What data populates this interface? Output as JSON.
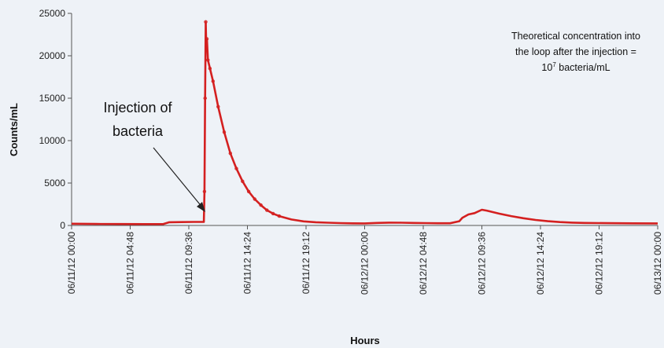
{
  "chart_data": {
    "type": "line",
    "title": "",
    "xlabel": "Hours",
    "ylabel": "Counts/mL",
    "ylim": [
      0,
      25000
    ],
    "yticks": [
      0,
      5000,
      10000,
      15000,
      20000,
      25000
    ],
    "ytick_labels": [
      "0",
      "5000",
      "10000",
      "15000",
      "20000",
      "25000"
    ],
    "xlim": [
      "2012-06-11T00:00",
      "2012-06-13T00:00"
    ],
    "xticks": [
      "2012-06-11T00:00",
      "2012-06-11T04:48",
      "2012-06-11T09:36",
      "2012-06-11T14:24",
      "2012-06-11T19:12",
      "2012-06-12T00:00",
      "2012-06-12T04:48",
      "2012-06-12T09:36",
      "2012-06-12T14:24",
      "2012-06-12T19:12",
      "2012-06-13T00:00"
    ],
    "xtick_labels": [
      "06/11/12  00:00",
      "06/11/12  04:48",
      "06/11/12  09:36",
      "06/11/12  14:24",
      "06/11/12  19:12",
      "06/12/12  00:00",
      "06/12/12  04:48",
      "06/12/12  09:36",
      "06/12/12  14:24",
      "06/12/12  19:12",
      "06/13/12  00:00"
    ],
    "grid": false,
    "series": [
      {
        "name": "",
        "color": "#d42020",
        "points": [
          [
            "2012-06-11T00:00",
            200
          ],
          [
            "2012-06-11T02:00",
            180
          ],
          [
            "2012-06-11T04:00",
            170
          ],
          [
            "2012-06-11T06:00",
            160
          ],
          [
            "2012-06-11T07:30",
            160
          ],
          [
            "2012-06-11T08:00",
            380
          ],
          [
            "2012-06-11T09:00",
            400
          ],
          [
            "2012-06-11T10:00",
            420
          ],
          [
            "2012-06-11T10:50",
            420
          ],
          [
            "2012-06-11T10:53",
            4000
          ],
          [
            "2012-06-11T10:56",
            15000
          ],
          [
            "2012-06-11T10:59",
            24000
          ],
          [
            "2012-06-11T11:02",
            21000
          ],
          [
            "2012-06-11T11:05",
            22000
          ],
          [
            "2012-06-11T11:10",
            19500
          ],
          [
            "2012-06-11T11:20",
            18500
          ],
          [
            "2012-06-11T11:35",
            17000
          ],
          [
            "2012-06-11T12:00",
            14000
          ],
          [
            "2012-06-11T12:30",
            11000
          ],
          [
            "2012-06-11T13:00",
            8500
          ],
          [
            "2012-06-11T13:30",
            6700
          ],
          [
            "2012-06-11T14:00",
            5200
          ],
          [
            "2012-06-11T14:30",
            4000
          ],
          [
            "2012-06-11T15:00",
            3100
          ],
          [
            "2012-06-11T15:30",
            2400
          ],
          [
            "2012-06-11T16:00",
            1800
          ],
          [
            "2012-06-11T16:30",
            1400
          ],
          [
            "2012-06-11T17:00",
            1100
          ],
          [
            "2012-06-11T18:00",
            700
          ],
          [
            "2012-06-11T19:00",
            480
          ],
          [
            "2012-06-11T20:00",
            380
          ],
          [
            "2012-06-11T21:00",
            320
          ],
          [
            "2012-06-11T22:00",
            280
          ],
          [
            "2012-06-11T23:00",
            250
          ],
          [
            "2012-06-12T00:00",
            240
          ],
          [
            "2012-06-12T01:00",
            300
          ],
          [
            "2012-06-12T02:00",
            330
          ],
          [
            "2012-06-12T03:00",
            320
          ],
          [
            "2012-06-12T04:00",
            300
          ],
          [
            "2012-06-12T05:00",
            280
          ],
          [
            "2012-06-12T06:00",
            260
          ],
          [
            "2012-06-12T07:00",
            260
          ],
          [
            "2012-06-12T07:45",
            500
          ],
          [
            "2012-06-12T08:00",
            900
          ],
          [
            "2012-06-12T08:30",
            1300
          ],
          [
            "2012-06-12T09:00",
            1450
          ],
          [
            "2012-06-12T09:36",
            1850
          ],
          [
            "2012-06-12T10:00",
            1750
          ],
          [
            "2012-06-12T11:00",
            1400
          ],
          [
            "2012-06-12T12:00",
            1100
          ],
          [
            "2012-06-12T13:00",
            850
          ],
          [
            "2012-06-12T14:00",
            650
          ],
          [
            "2012-06-12T15:00",
            500
          ],
          [
            "2012-06-12T16:00",
            400
          ],
          [
            "2012-06-12T17:00",
            330
          ],
          [
            "2012-06-12T18:00",
            300
          ],
          [
            "2012-06-12T20:00",
            270
          ],
          [
            "2012-06-12T22:00",
            250
          ],
          [
            "2012-06-13T00:00",
            240
          ]
        ]
      }
    ],
    "annotations": [
      {
        "id": "injection",
        "text_lines": [
          "Injection of",
          "bacteria"
        ]
      },
      {
        "id": "theoretical",
        "text_lines": [
          "Theoretical concentration into",
          "the loop after the injection =",
          "10",
          "7",
          " bacteria/mL"
        ]
      }
    ]
  }
}
